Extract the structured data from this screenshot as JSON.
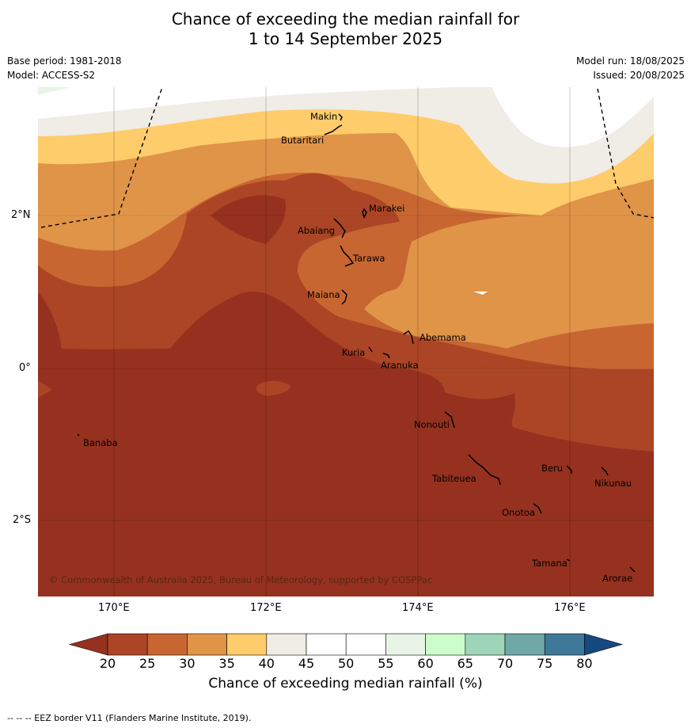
{
  "title_line1": "Chance of exceeding the median rainfall for",
  "title_line2": "1 to 14 September 2025",
  "base_period": "Base period: 1981-2018",
  "model": "Model: ACCESS-S2",
  "model_run": "Model run: 18/08/2025",
  "issued": "Issued: 20/08/2025",
  "axes": {
    "lon_ticks": [
      "170°E",
      "172°E",
      "174°E",
      "176°E"
    ],
    "lat_ticks": [
      "2°N",
      "0°",
      "2°S"
    ]
  },
  "places": [
    "Makin",
    "Butaritari",
    "Marakei",
    "Abaiang",
    "Tarawa",
    "Maiana",
    "Abemama",
    "Kuria",
    "Aranuka",
    "Nonouti",
    "Banaba",
    "Beru",
    "Nikunau",
    "Tabiteuea",
    "Onotoa",
    "Tamana",
    "Arorae"
  ],
  "copyright": "© Commonwealth of Australia 2025, Bureau of Meteorology, supported by COSPPac",
  "colorbar": {
    "label": "Chance of exceeding median rainfall (%)",
    "ticks": [
      "20",
      "25",
      "30",
      "35",
      "40",
      "45",
      "50",
      "55",
      "60",
      "65",
      "70",
      "75",
      "80"
    ],
    "colors": [
      "#96311f",
      "#ab4525",
      "#c86632",
      "#df9448",
      "#fecc6a",
      "#f0ece6",
      "#ffffff",
      "#ffffff",
      "#e8f4e6",
      "#ccfccb",
      "#9ed4b8",
      "#6fa8a6",
      "#3f7899",
      "#15497f"
    ]
  },
  "footer": "--  --  -- EEZ border V11 (Flanders Marine Institute, 2019)."
}
